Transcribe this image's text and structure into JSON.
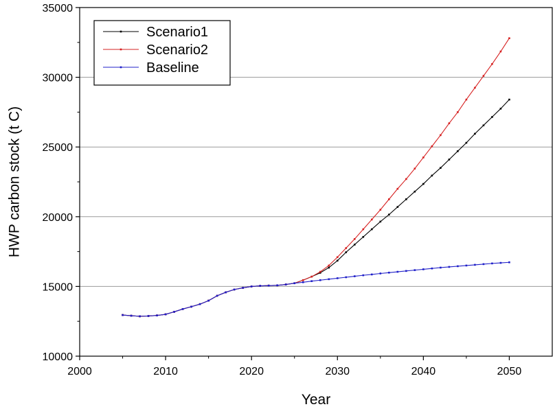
{
  "chart_data": {
    "type": "line",
    "title": "",
    "xlabel": "Year",
    "ylabel": "HWP carbon stock (t C)",
    "xlim": [
      2000,
      2055
    ],
    "ylim": [
      10000,
      35000
    ],
    "x_ticks": [
      2000,
      2010,
      2020,
      2030,
      2040,
      2050
    ],
    "y_ticks": [
      10000,
      15000,
      20000,
      25000,
      30000,
      35000
    ],
    "grid": "horizontal",
    "legend_position": "top-left",
    "x": [
      2005,
      2006,
      2007,
      2008,
      2009,
      2010,
      2011,
      2012,
      2013,
      2014,
      2015,
      2016,
      2017,
      2018,
      2019,
      2020,
      2021,
      2022,
      2023,
      2024,
      2025,
      2026,
      2027,
      2028,
      2029,
      2030,
      2031,
      2032,
      2033,
      2034,
      2035,
      2036,
      2037,
      2038,
      2039,
      2040,
      2041,
      2042,
      2043,
      2044,
      2045,
      2046,
      2047,
      2048,
      2049,
      2050
    ],
    "series": [
      {
        "name": "Scenario1",
        "color": "#000000",
        "values": [
          12950,
          12900,
          12860,
          12880,
          12920,
          13000,
          13180,
          13380,
          13550,
          13730,
          13980,
          14330,
          14580,
          14780,
          14900,
          15000,
          15040,
          15060,
          15080,
          15140,
          15230,
          15450,
          15700,
          15980,
          16350,
          16850,
          17450,
          18000,
          18550,
          19100,
          19650,
          20150,
          20700,
          21250,
          21800,
          22350,
          22950,
          23500,
          24100,
          24700,
          25300,
          25950,
          26550,
          27150,
          27750,
          28400
        ]
      },
      {
        "name": "Scenario2",
        "color": "#d62020",
        "values": [
          12950,
          12900,
          12860,
          12880,
          12920,
          13000,
          13180,
          13380,
          13550,
          13730,
          13980,
          14330,
          14580,
          14780,
          14900,
          15000,
          15040,
          15060,
          15080,
          15140,
          15230,
          15450,
          15700,
          16050,
          16500,
          17100,
          17750,
          18400,
          19100,
          19800,
          20500,
          21250,
          22000,
          22700,
          23450,
          24250,
          25050,
          25850,
          26700,
          27500,
          28400,
          29250,
          30100,
          30950,
          31850,
          32800
        ]
      },
      {
        "name": "Baseline",
        "color": "#1f1fc8",
        "values": [
          12950,
          12900,
          12860,
          12880,
          12920,
          13000,
          13180,
          13380,
          13550,
          13730,
          13980,
          14330,
          14580,
          14780,
          14900,
          15000,
          15040,
          15060,
          15080,
          15140,
          15230,
          15300,
          15380,
          15450,
          15520,
          15590,
          15660,
          15730,
          15800,
          15860,
          15930,
          15990,
          16050,
          16110,
          16170,
          16230,
          16290,
          16350,
          16400,
          16450,
          16500,
          16550,
          16600,
          16650,
          16690,
          16730
        ]
      }
    ]
  }
}
